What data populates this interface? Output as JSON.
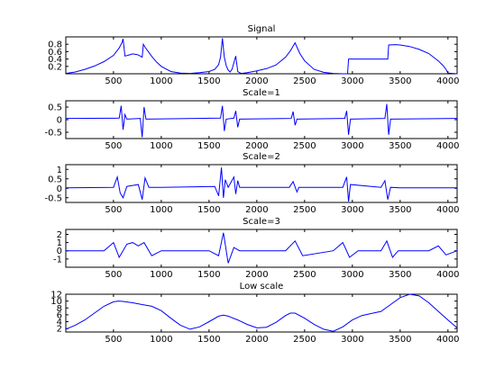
{
  "figure": {
    "background": "#ffffff",
    "line_color": "#0000ff",
    "axis_color": "#000000"
  },
  "chart_data": [
    {
      "type": "line",
      "title": "Signal",
      "xlim": [
        1,
        4096
      ],
      "ylim": [
        0,
        1
      ],
      "xticks": [
        500,
        1000,
        1500,
        2000,
        2500,
        3000,
        3500,
        4000
      ],
      "yticks": [
        0.2,
        0.4,
        0.6,
        0.8
      ],
      "ytick_labels": [
        "0.2",
        "0.4",
        "0.6",
        "0.8"
      ],
      "series": [
        {
          "x": [
            1,
            100,
            200,
            300,
            400,
            500,
            560,
            590,
            600,
            620,
            650,
            700,
            750,
            780,
            800,
            812,
            830,
            870,
            900,
            950,
            1000,
            1100,
            1200,
            1300,
            1400,
            1500,
            1560,
            1600,
            1620,
            1640,
            1660,
            1680,
            1700,
            1720,
            1740,
            1760,
            1780,
            1800,
            1820,
            1840,
            1900,
            2000,
            2100,
            2200,
            2300,
            2350,
            2380,
            2400,
            2420,
            2450,
            2500,
            2600,
            2700,
            2800,
            2900,
            2950,
            2960,
            3100,
            3200,
            3300,
            3370,
            3380,
            3450,
            3500,
            3600,
            3700,
            3800,
            3900,
            3950,
            3980,
            4000,
            4096
          ],
          "y": [
            0.01,
            0.05,
            0.12,
            0.21,
            0.33,
            0.5,
            0.7,
            0.85,
            0.95,
            0.48,
            0.5,
            0.54,
            0.52,
            0.48,
            0.45,
            0.8,
            0.72,
            0.58,
            0.47,
            0.32,
            0.2,
            0.06,
            0.02,
            0.01,
            0.03,
            0.06,
            0.12,
            0.25,
            0.45,
            0.96,
            0.45,
            0.22,
            0.1,
            0.05,
            0.12,
            0.3,
            0.48,
            0.06,
            0.03,
            0.01,
            0.03,
            0.08,
            0.14,
            0.24,
            0.45,
            0.62,
            0.75,
            0.84,
            0.72,
            0.55,
            0.35,
            0.12,
            0.04,
            0.01,
            0.0,
            0.0,
            0.4,
            0.4,
            0.4,
            0.4,
            0.4,
            0.78,
            0.79,
            0.78,
            0.74,
            0.66,
            0.55,
            0.35,
            0.22,
            0.12,
            0.02,
            0.0
          ]
        }
      ]
    },
    {
      "type": "line",
      "title": "Scale=1",
      "xlim": [
        1,
        4096
      ],
      "ylim": [
        -0.75,
        0.75
      ],
      "xticks": [
        500,
        1000,
        1500,
        2000,
        2500,
        3000,
        3500,
        4000
      ],
      "yticks": [
        -0.5,
        0,
        0.5
      ],
      "ytick_labels": [
        "-0.5",
        "0",
        "0.5"
      ],
      "series": [
        {
          "x": [
            1,
            560,
            580,
            600,
            620,
            640,
            780,
            800,
            820,
            840,
            1620,
            1640,
            1660,
            1680,
            1760,
            1780,
            1800,
            1820,
            2360,
            2380,
            2400,
            2420,
            2920,
            2940,
            2960,
            2980,
            3340,
            3360,
            3380,
            3400,
            4096
          ],
          "y": [
            0.05,
            0.06,
            0.55,
            -0.4,
            0.2,
            0.02,
            0.05,
            -0.7,
            0.5,
            0.02,
            0.06,
            0.55,
            -0.45,
            0.02,
            0.06,
            0.35,
            -0.3,
            0.02,
            0.05,
            0.32,
            -0.22,
            0.02,
            0.05,
            0.35,
            -0.6,
            0.02,
            0.05,
            0.62,
            -0.6,
            0.02,
            0.05
          ]
        }
      ]
    },
    {
      "type": "line",
      "title": "Scale=2",
      "xlim": [
        1,
        4096
      ],
      "ylim": [
        -0.75,
        1.25
      ],
      "xticks": [
        500,
        1000,
        1500,
        2000,
        2500,
        3000,
        3500,
        4000
      ],
      "yticks": [
        -0.5,
        0,
        0.5,
        1
      ],
      "ytick_labels": [
        "-0.5",
        "0",
        "0.5",
        "1"
      ],
      "series": [
        {
          "x": [
            1,
            500,
            540,
            570,
            600,
            640,
            700,
            760,
            800,
            830,
            870,
            1000,
            1560,
            1600,
            1630,
            1650,
            1670,
            1700,
            1760,
            1780,
            1800,
            1820,
            2000,
            2340,
            2380,
            2420,
            2440,
            2900,
            2940,
            2960,
            2980,
            3300,
            3340,
            3370,
            3400,
            3500,
            4096
          ],
          "y": [
            0.02,
            0.05,
            0.6,
            -0.25,
            -0.5,
            0.1,
            0.15,
            0.2,
            -0.6,
            0.55,
            0.05,
            0.05,
            0.1,
            -0.4,
            1.1,
            -0.5,
            0.45,
            0.05,
            0.6,
            -0.3,
            0.4,
            0.05,
            0.05,
            0.05,
            0.35,
            -0.2,
            0.05,
            0.05,
            0.6,
            -0.7,
            0.2,
            0.05,
            0.4,
            -0.6,
            0.05,
            0.02,
            0.02
          ]
        }
      ]
    },
    {
      "type": "line",
      "title": "Scale=3",
      "xlim": [
        1,
        4096
      ],
      "ylim": [
        -2,
        2.6
      ],
      "xticks": [
        500,
        1000,
        1500,
        2000,
        2500,
        3000,
        3500,
        4000
      ],
      "yticks": [
        -1,
        0,
        1,
        2
      ],
      "ytick_labels": [
        "-1",
        "0",
        "1",
        "2"
      ],
      "series": [
        {
          "x": [
            1,
            400,
            500,
            560,
            640,
            700,
            760,
            820,
            900,
            1000,
            1500,
            1600,
            1650,
            1700,
            1760,
            1820,
            2000,
            2300,
            2400,
            2480,
            2800,
            2900,
            2970,
            3060,
            3300,
            3360,
            3420,
            3480,
            3800,
            3900,
            3980,
            4096
          ],
          "y": [
            0.0,
            0.0,
            1.0,
            -0.8,
            0.8,
            1.0,
            0.6,
            1.0,
            -0.6,
            0.0,
            0.0,
            -0.6,
            2.2,
            -1.5,
            0.4,
            0.0,
            0.0,
            0.0,
            1.2,
            -0.6,
            0.0,
            1.0,
            -0.8,
            0.0,
            0.0,
            1.2,
            -0.8,
            0.0,
            0.0,
            0.6,
            -0.5,
            0.0
          ]
        }
      ]
    },
    {
      "type": "line",
      "title": "Low scale",
      "xlim": [
        1,
        4096
      ],
      "ylim": [
        1,
        12
      ],
      "xticks": [
        500,
        1000,
        1500,
        2000,
        2500,
        3000,
        3500,
        4000
      ],
      "yticks": [
        2,
        4,
        6,
        8,
        10,
        12
      ],
      "ytick_labels": [
        "2",
        "4",
        "6",
        "8",
        "10",
        "12"
      ],
      "series": [
        {
          "x": [
            1,
            100,
            200,
            300,
            400,
            500,
            550,
            600,
            700,
            800,
            900,
            1000,
            1100,
            1200,
            1300,
            1400,
            1500,
            1600,
            1650,
            1700,
            1800,
            1900,
            2000,
            2100,
            2200,
            2300,
            2350,
            2400,
            2500,
            2600,
            2700,
            2800,
            2900,
            3000,
            3100,
            3200,
            3300,
            3400,
            3500,
            3600,
            3700,
            3800,
            3900,
            4000,
            4096
          ],
          "y": [
            1.8,
            3.0,
            4.5,
            6.5,
            8.5,
            9.8,
            10.0,
            9.9,
            9.5,
            9.0,
            8.5,
            7.2,
            5.0,
            3.0,
            1.8,
            2.5,
            4.0,
            5.6,
            5.9,
            5.6,
            4.5,
            3.2,
            2.2,
            2.4,
            3.8,
            5.8,
            6.5,
            6.5,
            5.0,
            3.2,
            1.8,
            1.2,
            2.5,
            4.5,
            5.8,
            6.4,
            7.0,
            9.0,
            11.0,
            12.0,
            11.5,
            9.5,
            7.0,
            4.5,
            2.2
          ]
        }
      ]
    }
  ]
}
